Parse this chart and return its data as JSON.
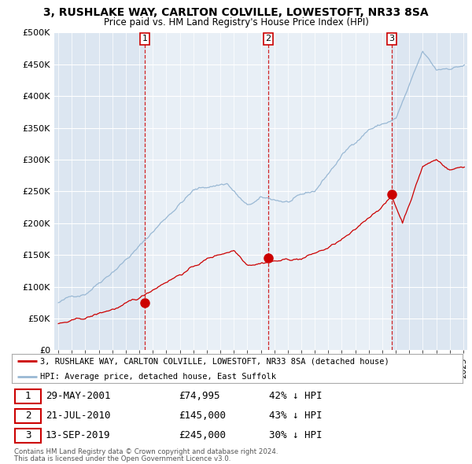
{
  "title": "3, RUSHLAKE WAY, CARLTON COLVILLE, LOWESTOFT, NR33 8SA",
  "subtitle": "Price paid vs. HM Land Registry's House Price Index (HPI)",
  "ylabel_ticks": [
    "£0",
    "£50K",
    "£100K",
    "£150K",
    "£200K",
    "£250K",
    "£300K",
    "£350K",
    "£400K",
    "£450K",
    "£500K"
  ],
  "ylim": [
    0,
    500000
  ],
  "xlim": [
    1994.7,
    2025.3
  ],
  "sales": [
    {
      "num": 1,
      "date": "29-MAY-2001",
      "price": 74995,
      "year": 2001.4,
      "pct": "42%",
      "dir": "↓"
    },
    {
      "num": 2,
      "date": "21-JUL-2010",
      "price": 145000,
      "year": 2010.55,
      "pct": "43%",
      "dir": "↓"
    },
    {
      "num": 3,
      "date": "13-SEP-2019",
      "price": 245000,
      "year": 2019.7,
      "pct": "30%",
      "dir": "↓"
    }
  ],
  "property_color": "#cc0000",
  "hpi_color": "#99b8d4",
  "background_color": "#dce6f1",
  "background_highlight": "#e8eff6",
  "legend_label_property": "3, RUSHLAKE WAY, CARLTON COLVILLE, LOWESTOFT, NR33 8SA (detached house)",
  "legend_label_hpi": "HPI: Average price, detached house, East Suffolk",
  "footer1": "Contains HM Land Registry data © Crown copyright and database right 2024.",
  "footer2": "This data is licensed under the Open Government Licence v3.0."
}
